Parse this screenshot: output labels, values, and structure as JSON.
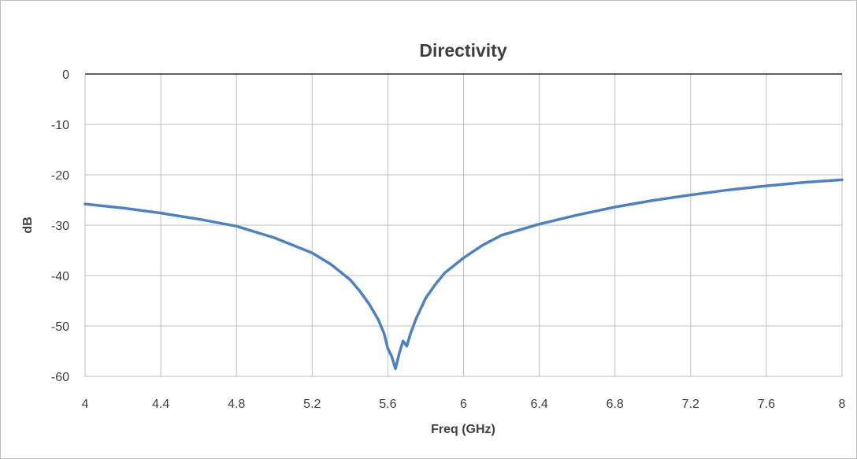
{
  "chart_data": {
    "type": "line",
    "title": "Directivity",
    "xlabel": "Freq (GHz)",
    "ylabel": "dB",
    "xlim": [
      4,
      8
    ],
    "ylim": [
      -60,
      0
    ],
    "x_ticks": [
      "4",
      "4.4",
      "4.8",
      "5.2",
      "5.6",
      "6",
      "6.4",
      "6.8",
      "7.2",
      "7.6",
      "8"
    ],
    "y_ticks": [
      "0",
      "-10",
      "-20",
      "-30",
      "-40",
      "-50",
      "-60"
    ],
    "grid": true,
    "legend": "none",
    "series": [
      {
        "color": "#4f81bd",
        "x": [
          4.0,
          4.2,
          4.4,
          4.6,
          4.8,
          5.0,
          5.2,
          5.3,
          5.4,
          5.45,
          5.5,
          5.55,
          5.58,
          5.6,
          5.62,
          5.64,
          5.65,
          5.66,
          5.68,
          5.7,
          5.72,
          5.75,
          5.8,
          5.85,
          5.9,
          6.0,
          6.1,
          6.2,
          6.4,
          6.6,
          6.8,
          7.0,
          7.2,
          7.4,
          7.6,
          7.8,
          8.0
        ],
        "values": [
          -25.8,
          -26.6,
          -27.6,
          -28.8,
          -30.2,
          -32.5,
          -35.5,
          -37.8,
          -40.8,
          -43.0,
          -45.6,
          -48.8,
          -51.5,
          -54.5,
          -56.0,
          -58.5,
          -57.0,
          -55.5,
          -53.0,
          -54.0,
          -51.5,
          -48.5,
          -44.5,
          -41.8,
          -39.5,
          -36.5,
          -34.0,
          -32.0,
          -29.8,
          -28.0,
          -26.4,
          -25.1,
          -24.0,
          -23.0,
          -22.2,
          -21.5,
          -21.0
        ]
      }
    ]
  }
}
